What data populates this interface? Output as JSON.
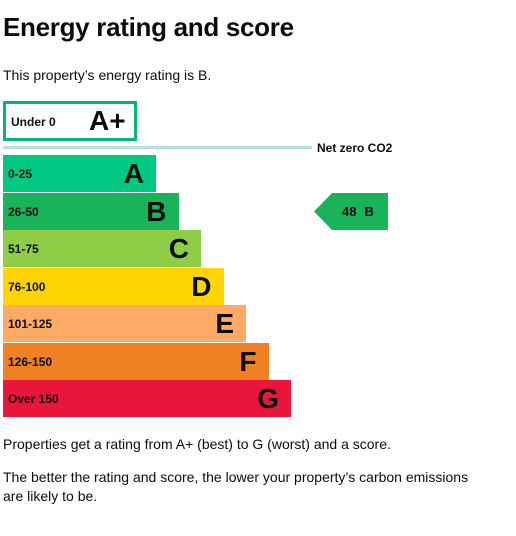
{
  "heading": "Energy rating and score",
  "intro": "This property’s energy rating is B.",
  "aplus": {
    "range": "Under 0",
    "letter": "A+",
    "border_color": "#00b67a"
  },
  "net_zero": {
    "label": "Net zero CO2",
    "line_color": "#b8dfe6"
  },
  "bands": [
    {
      "range": "0-25",
      "letter": "A",
      "color": "#00c781"
    },
    {
      "range": "26-50",
      "letter": "B",
      "color": "#19b459"
    },
    {
      "range": "51-75",
      "letter": "C",
      "color": "#8dce46"
    },
    {
      "range": "76-100",
      "letter": "D",
      "color": "#ffd500"
    },
    {
      "range": "101-125",
      "letter": "E",
      "color": "#fcaa65"
    },
    {
      "range": "126-150",
      "letter": "F",
      "color": "#ef8023"
    },
    {
      "range": "Over 150",
      "letter": "G",
      "color": "#e9153b"
    }
  ],
  "current_rating": {
    "score": "48",
    "letter": "B",
    "color": "#19b459"
  },
  "paragraphs": [
    "Properties get a rating from A+ (best) to G (worst) and a score.",
    "The better the rating and score, the lower your property’s carbon emissions are likely to be."
  ]
}
